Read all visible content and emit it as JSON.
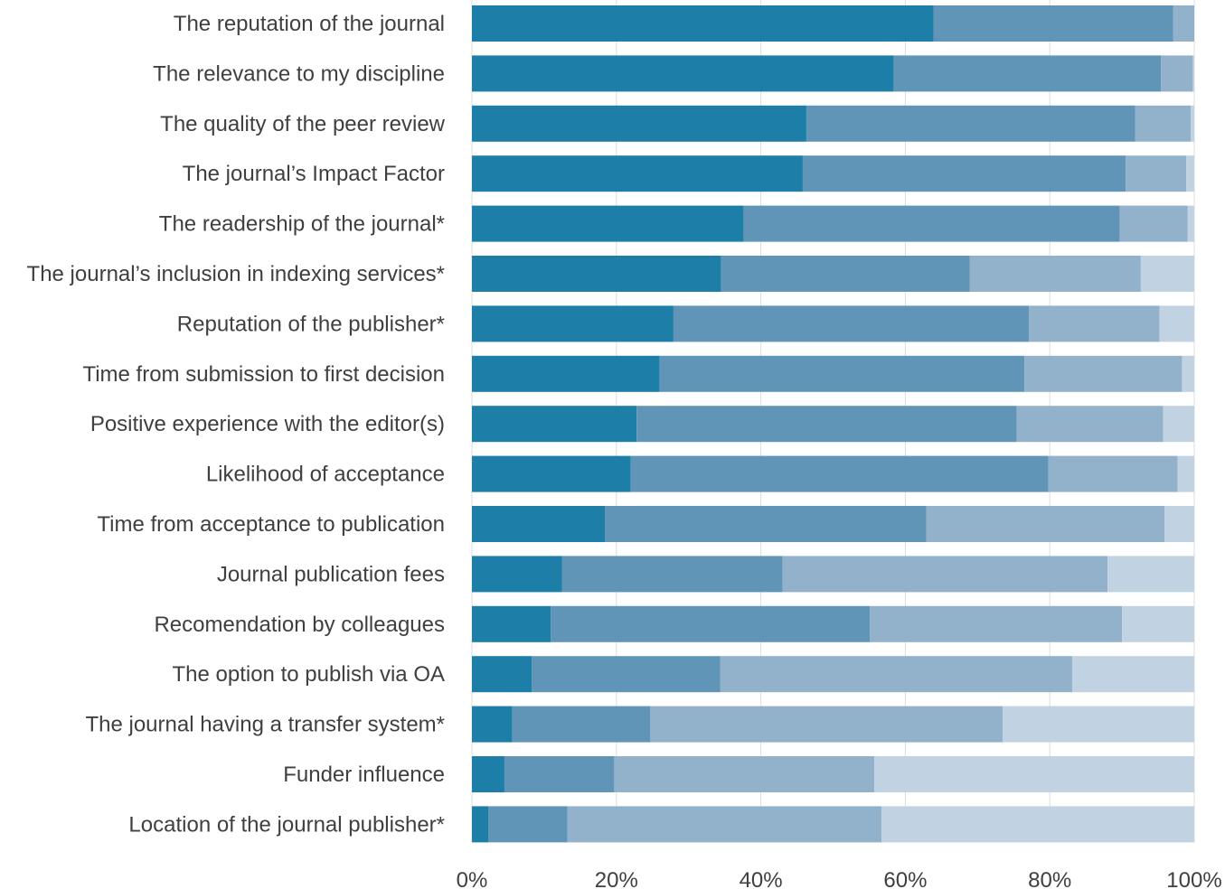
{
  "chart_data": {
    "type": "bar",
    "orientation": "horizontal",
    "stacked": true,
    "percent_stacked": true,
    "categories": [
      "The reputation of the journal",
      "The relevance to my discipline",
      "The quality of the peer review",
      "The journal’s Impact Factor",
      "The readership of the journal*",
      "The journal’s inclusion in indexing services*",
      "Reputation of the publisher*",
      "Time from submission to first decision",
      "Positive experience with the editor(s)",
      "Likelihood of acceptance",
      "Time from acceptance to publication",
      "Journal publication fees",
      "Recomendation by colleagues",
      "The option to publish via OA",
      "The journal having a transfer system*",
      "Funder influence",
      "Location of the journal publisher*"
    ],
    "series": [
      {
        "color": "#1d7ea8",
        "values": [
          63.9,
          58.4,
          46.3,
          45.8,
          37.6,
          34.5,
          27.9,
          26.0,
          22.8,
          22.0,
          18.4,
          12.5,
          10.9,
          8.3,
          5.6,
          4.5,
          2.3
        ]
      },
      {
        "color": "#6095b8",
        "values": [
          33.2,
          37.0,
          45.5,
          44.7,
          52.1,
          34.4,
          49.2,
          50.5,
          52.6,
          57.8,
          44.5,
          30.5,
          44.2,
          26.1,
          19.1,
          15.2,
          10.9
        ]
      },
      {
        "color": "#92b2cb",
        "values": [
          2.9,
          4.4,
          7.7,
          8.4,
          9.4,
          23.7,
          18.1,
          21.8,
          20.3,
          17.9,
          33.0,
          45.0,
          34.9,
          48.7,
          48.8,
          36.0,
          43.5
        ]
      },
      {
        "color": "#c1d3e2",
        "values": [
          0.0,
          0.2,
          0.5,
          1.1,
          0.9,
          7.4,
          4.8,
          1.7,
          4.3,
          2.3,
          4.1,
          12.0,
          10.0,
          16.9,
          26.5,
          44.3,
          43.3
        ]
      }
    ],
    "xlim": [
      0,
      100
    ],
    "x_ticks": [
      "0%",
      "20%",
      "40%",
      "60%",
      "80%",
      "100%"
    ],
    "grid": true,
    "title": "",
    "xlabel": "",
    "ylabel": ""
  }
}
